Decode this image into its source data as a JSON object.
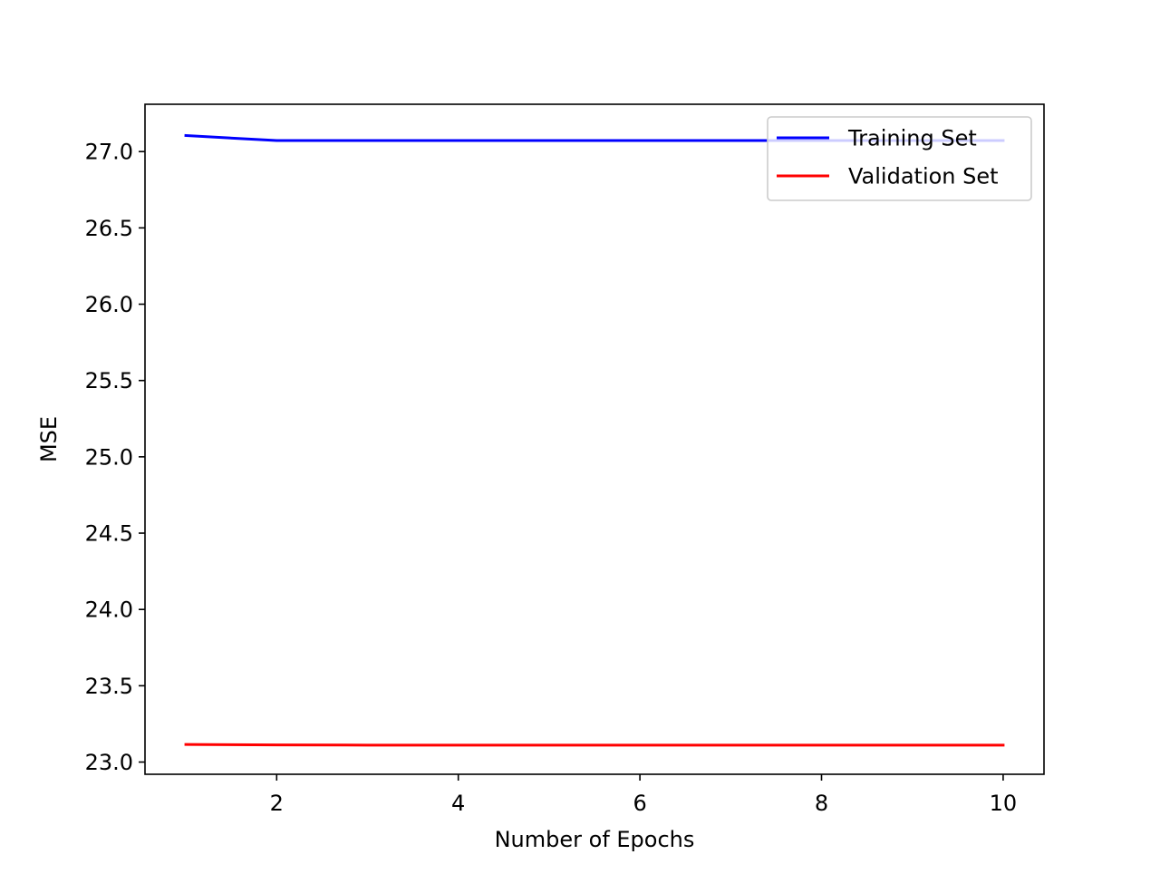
{
  "chart_data": {
    "type": "line",
    "title": "",
    "xlabel": "Number of Epochs",
    "ylabel": "MSE",
    "xlim": [
      0.55,
      10.45
    ],
    "ylim": [
      22.92,
      27.31
    ],
    "xticks": [
      2,
      4,
      6,
      8,
      10
    ],
    "xtick_labels": [
      "2",
      "4",
      "6",
      "8",
      "10"
    ],
    "yticks": [
      23.0,
      23.5,
      24.0,
      24.5,
      25.0,
      25.5,
      26.0,
      26.5,
      27.0
    ],
    "ytick_labels": [
      "23.0",
      "23.5",
      "24.0",
      "24.5",
      "25.0",
      "25.5",
      "26.0",
      "26.5",
      "27.0"
    ],
    "grid": false,
    "legend_position": "upper right",
    "x": [
      1,
      2,
      3,
      4,
      5,
      6,
      7,
      8,
      9,
      10
    ],
    "series": [
      {
        "name": "Training Set",
        "color": "#0000ff",
        "values": [
          27.105,
          27.072,
          27.072,
          27.072,
          27.072,
          27.072,
          27.072,
          27.072,
          27.072,
          27.072
        ]
      },
      {
        "name": "Validation Set",
        "color": "#ff0000",
        "values": [
          23.115,
          23.112,
          23.111,
          23.111,
          23.111,
          23.111,
          23.111,
          23.111,
          23.111,
          23.111
        ]
      }
    ]
  }
}
